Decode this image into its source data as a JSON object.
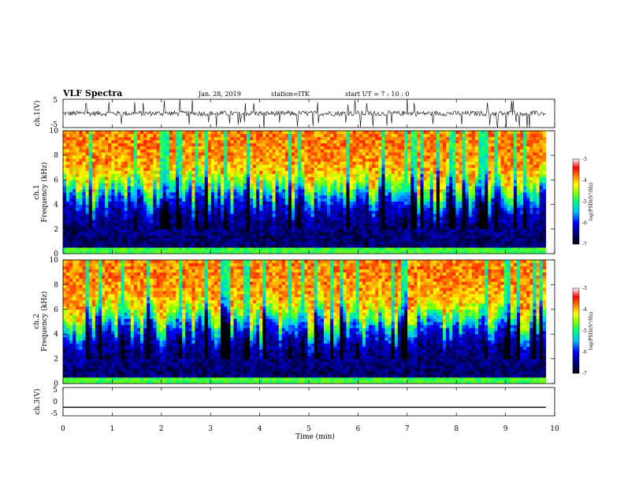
{
  "header": {
    "title": "VLF Spectra",
    "date": "Jan. 28, 2019",
    "station": "station=ITK",
    "start": "start UT =   7 : 10 : 0"
  },
  "chart_data": [
    {
      "type": "line",
      "panel": "ch1-waveform",
      "ylabel": "ch.1(V)",
      "ylim": [
        -5,
        5
      ],
      "yticks": [
        "5",
        "-5"
      ],
      "xlim": [
        0,
        10
      ],
      "x_extent": [
        0,
        9.82
      ],
      "baseline_value": 0,
      "noise_amplitude_approx": 1.5,
      "burst_amplitude_approx": 5
    },
    {
      "type": "heatmap",
      "panel": "ch1-spectrogram",
      "ylabel_top": "ch.1",
      "ylabel": "Frequency (kHz)",
      "ylim": [
        0,
        10
      ],
      "yticks": [
        "0",
        "2",
        "4",
        "6",
        "8",
        "10"
      ],
      "xlim": [
        0,
        10
      ],
      "x_extent": [
        0,
        9.82
      ],
      "colorbar": {
        "label": "log(PSD)(V²/Hz)",
        "range": [
          -7,
          -3
        ],
        "ticks": [
          "-3",
          "-4",
          "-5",
          "-6",
          "-7"
        ]
      },
      "description_values": {
        "low_freq_floor_kHz": 0.5,
        "transition_kHz": [
          3.5,
          6
        ],
        "high_freq_level": -3.8,
        "low_freq_level": -6.6
      }
    },
    {
      "type": "heatmap",
      "panel": "ch2-spectrogram",
      "ylabel_top": "ch.2",
      "ylabel": "Frequency (kHz)",
      "ylim": [
        0,
        10
      ],
      "yticks": [
        "0",
        "2",
        "4",
        "6",
        "8",
        "10"
      ],
      "xlim": [
        0,
        10
      ],
      "x_extent": [
        0,
        9.82
      ],
      "colorbar": {
        "label": "log(PSD)(V²/Hz)",
        "range": [
          -7,
          -3
        ],
        "ticks": [
          "-3",
          "-4",
          "-5",
          "-6",
          "-7"
        ]
      },
      "description_values": {
        "low_freq_floor_kHz": 0.5,
        "transition_kHz": [
          3.5,
          6
        ],
        "high_freq_level": -3.8,
        "low_freq_level": -6.6
      }
    },
    {
      "type": "line",
      "panel": "ch3-waveform",
      "ylabel": "ch.3(V)",
      "ylim": [
        -5,
        5
      ],
      "yticks": [
        "5",
        "0",
        "-5"
      ],
      "xlim": [
        0,
        10
      ],
      "x_extent": [
        0,
        9.82
      ],
      "baseline_value": -2
    }
  ],
  "xaxis": {
    "label": "Time (min)",
    "ticks": [
      "0",
      "1",
      "2",
      "3",
      "4",
      "5",
      "6",
      "7",
      "8",
      "9",
      "10"
    ]
  },
  "colors": {
    "colormap": [
      "#000000",
      "#00007f",
      "#0000ff",
      "#00bfff",
      "#00ff7f",
      "#7fff00",
      "#ffff00",
      "#ff7f00",
      "#ff0000",
      "#ffffff"
    ]
  }
}
